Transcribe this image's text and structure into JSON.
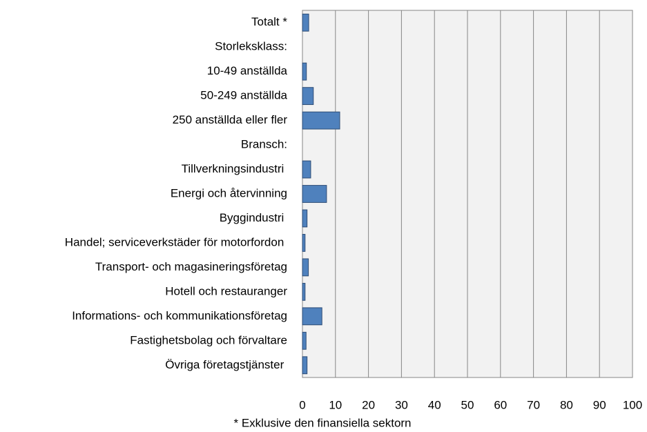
{
  "chart_data": {
    "type": "bar",
    "orientation": "horizontal",
    "categories": [
      "Totalt *",
      "Storleksklass:",
      "10-49 anställda",
      "50-249 anställda",
      "250 anställda eller fler",
      "Bransch:",
      "Tillverkningsindustri ",
      "Energi och återvinning",
      "Byggindustri ",
      "Handel; serviceverkstäder för motorfordon ",
      "Transport- och magasineringsföretag",
      "Hotell och restauranger",
      "Informations- och kommunikationsföretag",
      "Fastighetsbolag och förvaltare",
      "Övriga företagstjänster "
    ],
    "values": [
      1.9,
      null,
      1.2,
      3.3,
      11.3,
      null,
      2.5,
      7.3,
      1.4,
      0.8,
      1.8,
      0.8,
      5.9,
      1.1,
      1.4
    ],
    "color": "#4f81bd",
    "xlim": [
      0,
      100
    ],
    "xticks": [
      0,
      10,
      20,
      30,
      40,
      50,
      60,
      70,
      80,
      90,
      100
    ],
    "grid": true,
    "annotation": "* Exklusive den finansiella sektorn"
  }
}
